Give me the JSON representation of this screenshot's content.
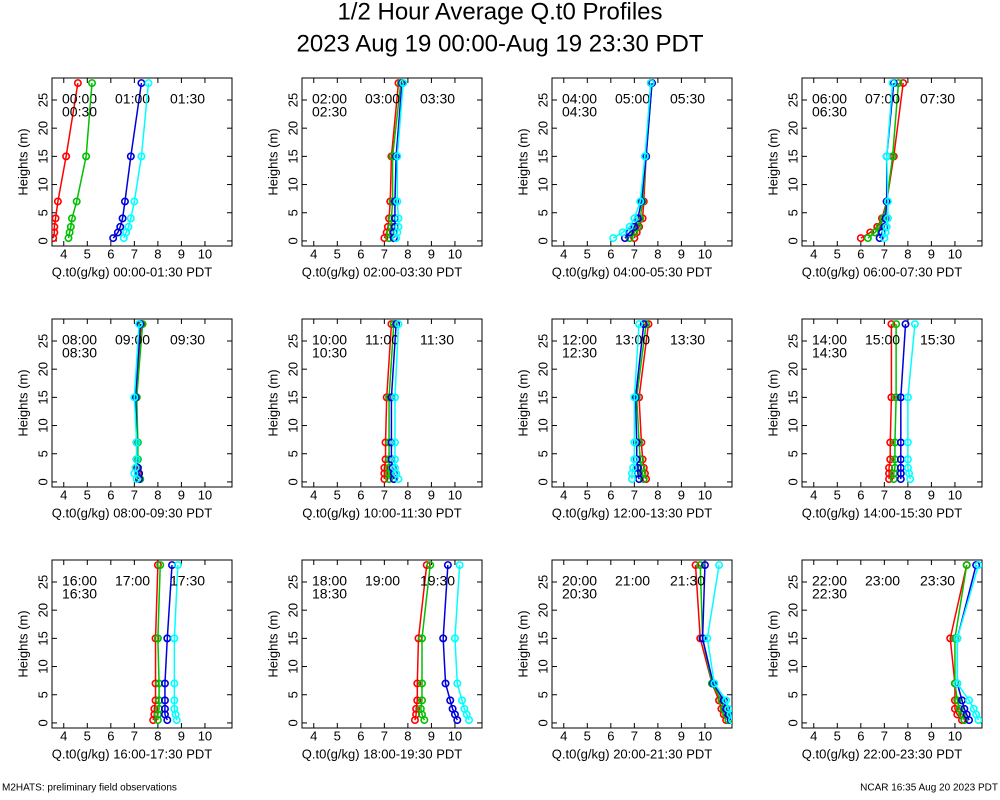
{
  "title": "1/2 Hour Average Q.t0 Profiles",
  "subtitle": "2023 Aug 19 00:00-Aug 19 23:30 PDT",
  "footer_left": "M2HATS: preliminary field observations",
  "footer_right": "NCAR 16:35 Aug 20 2023 PDT",
  "chart_data": [
    {
      "type": "line",
      "xlabel": "Q.t0(g/kg) 00:00-01:30 PDT",
      "ylabel": "Heights (m)",
      "xlim": [
        3.5,
        11.15
      ],
      "ylim": [
        -0.9,
        28.9
      ],
      "xticks": [
        4,
        5,
        6,
        7,
        8,
        9,
        10
      ],
      "yticks": [
        0,
        5,
        10,
        15,
        20,
        25
      ],
      "y": [
        0.5,
        1.5,
        2.5,
        4,
        7,
        15,
        28
      ],
      "series": [
        {
          "name": "00:00",
          "color": "#ff0000",
          "values": [
            3.55,
            3.6,
            3.6,
            3.65,
            3.75,
            4.1,
            4.6
          ]
        },
        {
          "name": "00:30",
          "color": "#00c000",
          "values": [
            4.2,
            4.25,
            4.3,
            4.35,
            4.55,
            4.95,
            5.2
          ]
        },
        {
          "name": "01:00",
          "color": "#0000dd",
          "values": [
            6.1,
            6.3,
            6.4,
            6.5,
            6.6,
            6.85,
            7.3
          ]
        },
        {
          "name": "01:30",
          "color": "#00ffff",
          "values": [
            6.55,
            6.65,
            6.75,
            6.85,
            7.0,
            7.3,
            7.6
          ]
        }
      ]
    },
    {
      "type": "line",
      "xlabel": "Q.t0(g/kg) 02:00-03:30 PDT",
      "ylabel": "Heights (m)",
      "xlim": [
        3.5,
        11.15
      ],
      "ylim": [
        -0.9,
        28.9
      ],
      "xticks": [
        4,
        5,
        6,
        7,
        8,
        9,
        10
      ],
      "yticks": [
        0,
        5,
        10,
        15,
        20,
        25
      ],
      "y": [
        0.5,
        1.5,
        2.5,
        4,
        7,
        15,
        28
      ],
      "series": [
        {
          "name": "02:00",
          "color": "#ff0000",
          "values": [
            7.0,
            7.1,
            7.15,
            7.2,
            7.25,
            7.3,
            7.6
          ]
        },
        {
          "name": "02:30",
          "color": "#00c000",
          "values": [
            7.2,
            7.25,
            7.3,
            7.3,
            7.35,
            7.35,
            7.7
          ]
        },
        {
          "name": "03:00",
          "color": "#0000dd",
          "values": [
            7.4,
            7.4,
            7.45,
            7.45,
            7.45,
            7.5,
            7.75
          ]
        },
        {
          "name": "03:30",
          "color": "#00ffff",
          "values": [
            7.5,
            7.55,
            7.6,
            7.6,
            7.55,
            7.55,
            7.8
          ]
        }
      ]
    },
    {
      "type": "line",
      "xlabel": "Q.t0(g/kg) 04:00-05:30 PDT",
      "ylabel": "Heights (m)",
      "xlim": [
        3.5,
        11.15
      ],
      "ylim": [
        -0.9,
        28.9
      ],
      "xticks": [
        4,
        5,
        6,
        7,
        8,
        9,
        10
      ],
      "yticks": [
        0,
        5,
        10,
        15,
        20,
        25
      ],
      "y": [
        0.5,
        1.5,
        2.5,
        4,
        7,
        15,
        28
      ],
      "series": [
        {
          "name": "04:00",
          "color": "#ff0000",
          "values": [
            7.0,
            7.1,
            7.2,
            7.35,
            7.4,
            7.5,
            7.7
          ]
        },
        {
          "name": "04:30",
          "color": "#00c000",
          "values": [
            6.8,
            7.0,
            7.15,
            7.25,
            7.35,
            7.5,
            7.75
          ]
        },
        {
          "name": "05:00",
          "color": "#0000dd",
          "values": [
            6.6,
            6.8,
            7.0,
            7.15,
            7.3,
            7.5,
            7.75
          ]
        },
        {
          "name": "05:30",
          "color": "#00ffff",
          "values": [
            6.1,
            6.5,
            6.8,
            7.0,
            7.25,
            7.45,
            7.7
          ]
        }
      ]
    },
    {
      "type": "line",
      "xlabel": "Q.t0(g/kg) 06:00-07:30 PDT",
      "ylabel": "Heights (m)",
      "xlim": [
        3.5,
        11.15
      ],
      "ylim": [
        -0.9,
        28.9
      ],
      "xticks": [
        4,
        5,
        6,
        7,
        8,
        9,
        10
      ],
      "yticks": [
        0,
        5,
        10,
        15,
        20,
        25
      ],
      "y": [
        0.5,
        1.5,
        2.5,
        4,
        7,
        15,
        28
      ],
      "series": [
        {
          "name": "06:00",
          "color": "#ff0000",
          "values": [
            6.0,
            6.4,
            6.7,
            6.9,
            7.1,
            7.4,
            7.8
          ]
        },
        {
          "name": "06:30",
          "color": "#00c000",
          "values": [
            6.3,
            6.6,
            6.8,
            6.95,
            7.1,
            7.35,
            7.6
          ]
        },
        {
          "name": "07:00",
          "color": "#0000dd",
          "values": [
            6.8,
            6.9,
            7.0,
            7.05,
            7.1,
            7.1,
            7.4
          ]
        },
        {
          "name": "07:30",
          "color": "#00ffff",
          "values": [
            7.0,
            7.05,
            7.1,
            7.15,
            7.15,
            7.1,
            7.35
          ]
        }
      ]
    },
    {
      "type": "line",
      "xlabel": "Q.t0(g/kg) 08:00-09:30 PDT",
      "ylabel": "Heights (m)",
      "xlim": [
        3.5,
        11.15
      ],
      "ylim": [
        -0.9,
        28.9
      ],
      "xticks": [
        4,
        5,
        6,
        7,
        8,
        9,
        10
      ],
      "yticks": [
        0,
        5,
        10,
        15,
        20,
        25
      ],
      "y": [
        0.5,
        1.5,
        2.5,
        4,
        7,
        15,
        28
      ],
      "series": [
        {
          "name": "08:00",
          "color": "#ff0000",
          "values": [
            7.2,
            7.15,
            7.1,
            7.1,
            7.1,
            7.1,
            7.3
          ]
        },
        {
          "name": "08:30",
          "color": "#00c000",
          "values": [
            7.25,
            7.2,
            7.15,
            7.15,
            7.15,
            7.1,
            7.35
          ]
        },
        {
          "name": "09:00",
          "color": "#0000dd",
          "values": [
            7.2,
            7.2,
            7.15,
            7.1,
            7.1,
            7.05,
            7.25
          ]
        },
        {
          "name": "09:30",
          "color": "#00ffff",
          "values": [
            7.1,
            7.0,
            7.05,
            7.1,
            7.1,
            7.0,
            7.2
          ]
        }
      ]
    },
    {
      "type": "line",
      "xlabel": "Q.t0(g/kg) 10:00-11:30 PDT",
      "ylabel": "Heights (m)",
      "xlim": [
        3.5,
        11.15
      ],
      "ylim": [
        -0.9,
        28.9
      ],
      "xticks": [
        4,
        5,
        6,
        7,
        8,
        9,
        10
      ],
      "yticks": [
        0,
        5,
        10,
        15,
        20,
        25
      ],
      "y": [
        0.5,
        1.5,
        2.5,
        4,
        7,
        15,
        28
      ],
      "series": [
        {
          "name": "10:00",
          "color": "#ff0000",
          "values": [
            7.0,
            7.0,
            7.0,
            7.05,
            7.05,
            7.1,
            7.3
          ]
        },
        {
          "name": "10:30",
          "color": "#00c000",
          "values": [
            7.2,
            7.2,
            7.2,
            7.2,
            7.2,
            7.2,
            7.4
          ]
        },
        {
          "name": "11:00",
          "color": "#0000dd",
          "values": [
            7.4,
            7.4,
            7.35,
            7.3,
            7.3,
            7.3,
            7.5
          ]
        },
        {
          "name": "11:30",
          "color": "#00ffff",
          "values": [
            7.6,
            7.5,
            7.45,
            7.45,
            7.45,
            7.45,
            7.6
          ]
        }
      ]
    },
    {
      "type": "line",
      "xlabel": "Q.t0(g/kg) 12:00-13:30 PDT",
      "ylabel": "Heights (m)",
      "xlim": [
        3.5,
        11.15
      ],
      "ylim": [
        -0.9,
        28.9
      ],
      "xticks": [
        4,
        5,
        6,
        7,
        8,
        9,
        10
      ],
      "yticks": [
        0,
        5,
        10,
        15,
        20,
        25
      ],
      "y": [
        0.5,
        1.5,
        2.5,
        4,
        7,
        15,
        28
      ],
      "series": [
        {
          "name": "12:00",
          "color": "#ff0000",
          "values": [
            7.5,
            7.45,
            7.4,
            7.35,
            7.3,
            7.2,
            7.6
          ]
        },
        {
          "name": "12:30",
          "color": "#00c000",
          "values": [
            7.4,
            7.35,
            7.3,
            7.25,
            7.2,
            7.1,
            7.5
          ]
        },
        {
          "name": "13:00",
          "color": "#0000dd",
          "values": [
            7.2,
            7.15,
            7.15,
            7.1,
            7.1,
            7.05,
            7.4
          ]
        },
        {
          "name": "13:30",
          "color": "#00ffff",
          "values": [
            6.9,
            6.9,
            6.95,
            7.0,
            7.0,
            7.0,
            7.2
          ]
        }
      ]
    },
    {
      "type": "line",
      "xlabel": "Q.t0(g/kg) 14:00-15:30 PDT",
      "ylabel": "Heights (m)",
      "xlim": [
        3.5,
        11.15
      ],
      "ylim": [
        -0.9,
        28.9
      ],
      "xticks": [
        4,
        5,
        6,
        7,
        8,
        9,
        10
      ],
      "yticks": [
        0,
        5,
        10,
        15,
        20,
        25
      ],
      "y": [
        0.5,
        1.5,
        2.5,
        4,
        7,
        15,
        28
      ],
      "series": [
        {
          "name": "14:00",
          "color": "#ff0000",
          "values": [
            7.2,
            7.2,
            7.2,
            7.25,
            7.25,
            7.3,
            7.3
          ]
        },
        {
          "name": "14:30",
          "color": "#00c000",
          "values": [
            7.4,
            7.4,
            7.45,
            7.45,
            7.45,
            7.5,
            7.5
          ]
        },
        {
          "name": "15:00",
          "color": "#0000dd",
          "values": [
            7.7,
            7.7,
            7.7,
            7.7,
            7.7,
            7.7,
            7.9
          ]
        },
        {
          "name": "15:30",
          "color": "#00ffff",
          "values": [
            8.1,
            8.05,
            8.0,
            8.0,
            8.0,
            8.0,
            8.3
          ]
        }
      ]
    },
    {
      "type": "line",
      "xlabel": "Q.t0(g/kg) 16:00-17:30 PDT",
      "ylabel": "Heights (m)",
      "xlim": [
        3.5,
        11.15
      ],
      "ylim": [
        -0.9,
        28.9
      ],
      "xticks": [
        4,
        5,
        6,
        7,
        8,
        9,
        10
      ],
      "yticks": [
        0,
        5,
        10,
        15,
        20,
        25
      ],
      "y": [
        0.5,
        1.5,
        2.5,
        4,
        7,
        15,
        28
      ],
      "series": [
        {
          "name": "16:00",
          "color": "#ff0000",
          "values": [
            7.8,
            7.85,
            7.85,
            7.9,
            7.9,
            7.9,
            8.0
          ]
        },
        {
          "name": "16:30",
          "color": "#00c000",
          "values": [
            8.0,
            8.0,
            8.05,
            8.05,
            8.05,
            8.0,
            8.1
          ]
        },
        {
          "name": "17:00",
          "color": "#0000dd",
          "values": [
            8.4,
            8.3,
            8.3,
            8.3,
            8.3,
            8.4,
            8.6
          ]
        },
        {
          "name": "17:30",
          "color": "#00ffff",
          "values": [
            8.8,
            8.75,
            8.7,
            8.7,
            8.7,
            8.7,
            8.85
          ]
        }
      ]
    },
    {
      "type": "line",
      "xlabel": "Q.t0(g/kg) 18:00-19:30 PDT",
      "ylabel": "Heights (m)",
      "xlim": [
        3.5,
        11.15
      ],
      "ylim": [
        -0.9,
        28.9
      ],
      "xticks": [
        4,
        5,
        6,
        7,
        8,
        9,
        10
      ],
      "yticks": [
        0,
        5,
        10,
        15,
        20,
        25
      ],
      "y": [
        0.5,
        1.5,
        2.5,
        4,
        7,
        15,
        28
      ],
      "series": [
        {
          "name": "18:00",
          "color": "#ff0000",
          "values": [
            8.3,
            8.35,
            8.35,
            8.4,
            8.4,
            8.45,
            8.8
          ]
        },
        {
          "name": "18:30",
          "color": "#00c000",
          "values": [
            8.7,
            8.6,
            8.55,
            8.6,
            8.6,
            8.6,
            8.95
          ]
        },
        {
          "name": "19:00",
          "color": "#0000dd",
          "values": [
            10.1,
            10.0,
            9.9,
            9.8,
            9.6,
            9.5,
            9.7
          ]
        },
        {
          "name": "19:30",
          "color": "#00ffff",
          "values": [
            10.6,
            10.5,
            10.4,
            10.3,
            10.1,
            10.0,
            10.2
          ]
        }
      ]
    },
    {
      "type": "line",
      "xlabel": "Q.t0(g/kg) 20:00-21:30 PDT",
      "ylabel": "Heights (m)",
      "xlim": [
        3.5,
        11.15
      ],
      "ylim": [
        -0.9,
        28.9
      ],
      "xticks": [
        4,
        5,
        6,
        7,
        8,
        9,
        10
      ],
      "yticks": [
        0,
        5,
        10,
        15,
        20,
        25
      ],
      "y": [
        0.5,
        1.5,
        2.5,
        4,
        7,
        15,
        28
      ],
      "series": [
        {
          "name": "20:00",
          "color": "#ff0000",
          "values": [
            10.9,
            10.8,
            10.7,
            10.6,
            10.3,
            9.8,
            9.6
          ]
        },
        {
          "name": "20:30",
          "color": "#00c000",
          "values": [
            11.0,
            10.9,
            10.8,
            10.7,
            10.3,
            9.9,
            9.8
          ]
        },
        {
          "name": "21:00",
          "color": "#0000dd",
          "values": [
            11.1,
            11.0,
            10.9,
            10.8,
            10.35,
            9.9,
            10.0
          ]
        },
        {
          "name": "21:30",
          "color": "#00ffff",
          "values": [
            11.15,
            11.1,
            11.0,
            10.9,
            10.4,
            10.1,
            10.6
          ]
        }
      ]
    },
    {
      "type": "line",
      "xlabel": "Q.t0(g/kg) 22:00-23:30 PDT",
      "ylabel": "Heights (m)",
      "xlim": [
        3.5,
        11.15
      ],
      "ylim": [
        -0.9,
        28.9
      ],
      "xticks": [
        4,
        5,
        6,
        7,
        8,
        9,
        10
      ],
      "yticks": [
        0,
        5,
        10,
        15,
        20,
        25
      ],
      "y": [
        0.5,
        1.5,
        2.5,
        4,
        7,
        15,
        28
      ],
      "series": [
        {
          "name": "22:00",
          "color": "#ff0000",
          "values": [
            10.3,
            10.1,
            10.0,
            10.0,
            10.0,
            9.8,
            10.5
          ]
        },
        {
          "name": "22:30",
          "color": "#00c000",
          "values": [
            10.4,
            10.3,
            10.2,
            10.1,
            10.0,
            10.0,
            10.5
          ]
        },
        {
          "name": "23:00",
          "color": "#0000dd",
          "values": [
            10.6,
            10.5,
            10.4,
            10.3,
            10.1,
            10.1,
            10.9
          ]
        },
        {
          "name": "23:30",
          "color": "#00ffff",
          "values": [
            11.0,
            10.9,
            10.8,
            10.6,
            10.1,
            10.1,
            11.0
          ]
        }
      ]
    }
  ]
}
